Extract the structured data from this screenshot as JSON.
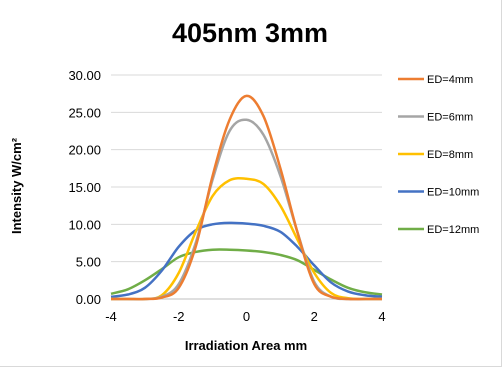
{
  "chart_data": {
    "type": "line",
    "title": "405nm 3mm",
    "xlabel": "Irradiation Area mm",
    "ylabel": "Intensity W/cm²",
    "xlim": [
      -4,
      4
    ],
    "ylim": [
      0,
      30
    ],
    "x_ticks": [
      "-4",
      "-2",
      "0",
      "2",
      "4"
    ],
    "y_ticks": [
      "0.00",
      "5.00",
      "10.00",
      "15.00",
      "20.00",
      "25.00",
      "30.00"
    ],
    "grid": true,
    "legend_position": "right",
    "x": [
      -4,
      -3.5,
      -3,
      -2.5,
      -2,
      -1.5,
      -1,
      -0.5,
      0,
      0.5,
      1,
      1.5,
      2,
      2.5,
      3,
      3.5,
      4
    ],
    "series": [
      {
        "name": "ED=4mm",
        "color": "#ed7d31",
        "values": [
          0.0,
          0.0,
          0.0,
          0.2,
          1.5,
          7.0,
          16.5,
          24.0,
          27.2,
          24.5,
          17.5,
          9.0,
          2.0,
          0.3,
          0.0,
          0.0,
          0.0
        ]
      },
      {
        "name": "ED=6mm",
        "color": "#a5a5a5",
        "values": [
          0.0,
          0.0,
          0.0,
          0.3,
          2.0,
          7.5,
          16.0,
          22.5,
          24.0,
          22.0,
          16.5,
          9.0,
          2.3,
          0.3,
          0.0,
          0.0,
          0.0
        ]
      },
      {
        "name": "ED=8mm",
        "color": "#ffc000",
        "values": [
          0.0,
          0.0,
          0.0,
          0.5,
          3.5,
          9.0,
          13.8,
          15.9,
          16.1,
          15.4,
          12.5,
          8.0,
          3.5,
          0.8,
          0.1,
          0.0,
          0.0
        ]
      },
      {
        "name": "ED=10mm",
        "color": "#4472c4",
        "values": [
          0.3,
          0.6,
          1.5,
          3.8,
          7.0,
          9.2,
          10.0,
          10.2,
          10.1,
          9.8,
          9.0,
          7.0,
          4.5,
          2.2,
          1.0,
          0.5,
          0.3
        ]
      },
      {
        "name": "ED=12mm",
        "color": "#70ad47",
        "values": [
          0.7,
          1.3,
          2.5,
          4.0,
          5.6,
          6.3,
          6.6,
          6.6,
          6.5,
          6.3,
          5.9,
          5.2,
          3.9,
          2.6,
          1.5,
          0.9,
          0.6
        ]
      }
    ]
  }
}
